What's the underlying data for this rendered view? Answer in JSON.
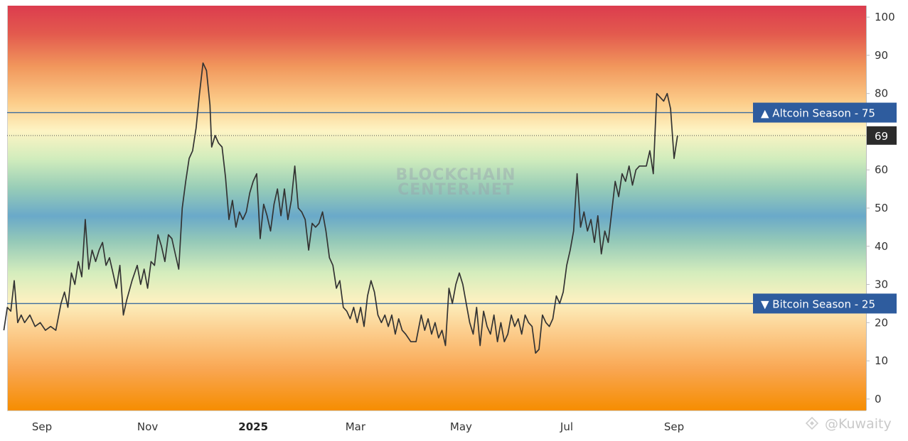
{
  "chart_data": {
    "type": "line",
    "title": "",
    "xlabel": "",
    "ylabel": "",
    "ylim": [
      -3,
      103
    ],
    "y_ticks": [
      "0",
      "10",
      "20",
      "30",
      "40",
      "50",
      "60",
      "70",
      "80",
      "90",
      "100"
    ],
    "x_ticks": [
      {
        "label": "Sep",
        "date": "2024-09-01"
      },
      {
        "label": "Nov",
        "date": "2024-11-01"
      },
      {
        "label": "2025",
        "date": "2025-01-01",
        "bold": true
      },
      {
        "label": "Mar",
        "date": "2025-03-01"
      },
      {
        "label": "May",
        "date": "2025-05-01"
      },
      {
        "label": "Jul",
        "date": "2025-07-01"
      },
      {
        "label": "Sep",
        "date": "2025-09-01"
      }
    ],
    "grid": false,
    "background": "vertical color gradient: red at 100, orange/yellow near 75, green, blue at 50, green, yellow near 25, orange at 0",
    "reference_lines": [
      {
        "name": "Altcoin Season",
        "value": 75,
        "direction": "up",
        "label": "▲ Altcoin Season - 75"
      },
      {
        "name": "Bitcoin Season",
        "value": 25,
        "direction": "down",
        "label": "▼ Bitcoin Season - 25"
      }
    ],
    "last_value_label": "69",
    "series": [
      {
        "points": [
          [
            "2024-08-10",
            18
          ],
          [
            "2024-08-12",
            24
          ],
          [
            "2024-08-14",
            23
          ],
          [
            "2024-08-16",
            31
          ],
          [
            "2024-08-18",
            20
          ],
          [
            "2024-08-20",
            22
          ],
          [
            "2024-08-22",
            20
          ],
          [
            "2024-08-25",
            22
          ],
          [
            "2024-08-28",
            19
          ],
          [
            "2024-08-31",
            20
          ],
          [
            "2024-09-03",
            18
          ],
          [
            "2024-09-06",
            19
          ],
          [
            "2024-09-09",
            18
          ],
          [
            "2024-09-12",
            25
          ],
          [
            "2024-09-14",
            28
          ],
          [
            "2024-09-16",
            24
          ],
          [
            "2024-09-18",
            33
          ],
          [
            "2024-09-20",
            30
          ],
          [
            "2024-09-22",
            36
          ],
          [
            "2024-09-24",
            32
          ],
          [
            "2024-09-26",
            47
          ],
          [
            "2024-09-28",
            34
          ],
          [
            "2024-09-30",
            39
          ],
          [
            "2024-10-02",
            36
          ],
          [
            "2024-10-04",
            39
          ],
          [
            "2024-10-06",
            41
          ],
          [
            "2024-10-08",
            35
          ],
          [
            "2024-10-10",
            37
          ],
          [
            "2024-10-12",
            33
          ],
          [
            "2024-10-14",
            29
          ],
          [
            "2024-10-16",
            35
          ],
          [
            "2024-10-18",
            22
          ],
          [
            "2024-10-20",
            26
          ],
          [
            "2024-10-23",
            31
          ],
          [
            "2024-10-26",
            35
          ],
          [
            "2024-10-28",
            30
          ],
          [
            "2024-10-30",
            34
          ],
          [
            "2024-11-01",
            29
          ],
          [
            "2024-11-03",
            36
          ],
          [
            "2024-11-05",
            35
          ],
          [
            "2024-11-07",
            43
          ],
          [
            "2024-11-09",
            40
          ],
          [
            "2024-11-11",
            36
          ],
          [
            "2024-11-13",
            43
          ],
          [
            "2024-11-15",
            42
          ],
          [
            "2024-11-17",
            38
          ],
          [
            "2024-11-19",
            34
          ],
          [
            "2024-11-21",
            50
          ],
          [
            "2024-11-23",
            57
          ],
          [
            "2024-11-25",
            63
          ],
          [
            "2024-11-27",
            65
          ],
          [
            "2024-11-29",
            71
          ],
          [
            "2024-12-01",
            80
          ],
          [
            "2024-12-03",
            88
          ],
          [
            "2024-12-05",
            86
          ],
          [
            "2024-12-07",
            77
          ],
          [
            "2024-12-08",
            66
          ],
          [
            "2024-12-10",
            69
          ],
          [
            "2024-12-12",
            67
          ],
          [
            "2024-12-14",
            66
          ],
          [
            "2024-12-16",
            58
          ],
          [
            "2024-12-18",
            47
          ],
          [
            "2024-12-20",
            52
          ],
          [
            "2024-12-22",
            45
          ],
          [
            "2024-12-24",
            49
          ],
          [
            "2024-12-26",
            47
          ],
          [
            "2024-12-28",
            49
          ],
          [
            "2024-12-30",
            54
          ],
          [
            "2025-01-01",
            57
          ],
          [
            "2025-01-03",
            59
          ],
          [
            "2025-01-05",
            42
          ],
          [
            "2025-01-07",
            51
          ],
          [
            "2025-01-09",
            48
          ],
          [
            "2025-01-11",
            44
          ],
          [
            "2025-01-13",
            51
          ],
          [
            "2025-01-15",
            55
          ],
          [
            "2025-01-17",
            48
          ],
          [
            "2025-01-19",
            55
          ],
          [
            "2025-01-21",
            47
          ],
          [
            "2025-01-23",
            52
          ],
          [
            "2025-01-25",
            61
          ],
          [
            "2025-01-27",
            50
          ],
          [
            "2025-01-29",
            49
          ],
          [
            "2025-01-31",
            47
          ],
          [
            "2025-02-02",
            39
          ],
          [
            "2025-02-04",
            46
          ],
          [
            "2025-02-06",
            45
          ],
          [
            "2025-02-08",
            46
          ],
          [
            "2025-02-10",
            49
          ],
          [
            "2025-02-12",
            44
          ],
          [
            "2025-02-14",
            37
          ],
          [
            "2025-02-16",
            35
          ],
          [
            "2025-02-18",
            29
          ],
          [
            "2025-02-20",
            31
          ],
          [
            "2025-02-22",
            24
          ],
          [
            "2025-02-24",
            23
          ],
          [
            "2025-02-26",
            21
          ],
          [
            "2025-02-28",
            24
          ],
          [
            "2025-03-02",
            20
          ],
          [
            "2025-03-04",
            24
          ],
          [
            "2025-03-06",
            19
          ],
          [
            "2025-03-08",
            27
          ],
          [
            "2025-03-10",
            31
          ],
          [
            "2025-03-12",
            28
          ],
          [
            "2025-03-14",
            22
          ],
          [
            "2025-03-16",
            20
          ],
          [
            "2025-03-18",
            22
          ],
          [
            "2025-03-20",
            19
          ],
          [
            "2025-03-22",
            22
          ],
          [
            "2025-03-24",
            17
          ],
          [
            "2025-03-26",
            21
          ],
          [
            "2025-03-28",
            18
          ],
          [
            "2025-03-30",
            17
          ],
          [
            "2025-04-02",
            15
          ],
          [
            "2025-04-05",
            15
          ],
          [
            "2025-04-08",
            22
          ],
          [
            "2025-04-10",
            18
          ],
          [
            "2025-04-12",
            21
          ],
          [
            "2025-04-14",
            17
          ],
          [
            "2025-04-16",
            20
          ],
          [
            "2025-04-18",
            16
          ],
          [
            "2025-04-20",
            18
          ],
          [
            "2025-04-22",
            14
          ],
          [
            "2025-04-24",
            29
          ],
          [
            "2025-04-26",
            25
          ],
          [
            "2025-04-28",
            30
          ],
          [
            "2025-04-30",
            33
          ],
          [
            "2025-05-02",
            30
          ],
          [
            "2025-05-04",
            25
          ],
          [
            "2025-05-06",
            20
          ],
          [
            "2025-05-08",
            17
          ],
          [
            "2025-05-10",
            24
          ],
          [
            "2025-05-12",
            14
          ],
          [
            "2025-05-14",
            23
          ],
          [
            "2025-05-16",
            19
          ],
          [
            "2025-05-18",
            17
          ],
          [
            "2025-05-20",
            22
          ],
          [
            "2025-05-22",
            15
          ],
          [
            "2025-05-24",
            20
          ],
          [
            "2025-05-26",
            15
          ],
          [
            "2025-05-28",
            17
          ],
          [
            "2025-05-30",
            22
          ],
          [
            "2025-06-01",
            19
          ],
          [
            "2025-06-03",
            21
          ],
          [
            "2025-06-05",
            17
          ],
          [
            "2025-06-07",
            22
          ],
          [
            "2025-06-09",
            20
          ],
          [
            "2025-06-11",
            19
          ],
          [
            "2025-06-13",
            12
          ],
          [
            "2025-06-15",
            13
          ],
          [
            "2025-06-17",
            22
          ],
          [
            "2025-06-19",
            20
          ],
          [
            "2025-06-21",
            19
          ],
          [
            "2025-06-23",
            21
          ],
          [
            "2025-06-25",
            27
          ],
          [
            "2025-06-27",
            25
          ],
          [
            "2025-06-29",
            28
          ],
          [
            "2025-07-01",
            35
          ],
          [
            "2025-07-03",
            39
          ],
          [
            "2025-07-05",
            44
          ],
          [
            "2025-07-07",
            59
          ],
          [
            "2025-07-09",
            45
          ],
          [
            "2025-07-11",
            49
          ],
          [
            "2025-07-13",
            44
          ],
          [
            "2025-07-15",
            47
          ],
          [
            "2025-07-17",
            41
          ],
          [
            "2025-07-19",
            48
          ],
          [
            "2025-07-21",
            38
          ],
          [
            "2025-07-23",
            44
          ],
          [
            "2025-07-25",
            41
          ],
          [
            "2025-07-27",
            49
          ],
          [
            "2025-07-29",
            57
          ],
          [
            "2025-07-31",
            53
          ],
          [
            "2025-08-02",
            59
          ],
          [
            "2025-08-04",
            57
          ],
          [
            "2025-08-06",
            61
          ],
          [
            "2025-08-08",
            56
          ],
          [
            "2025-08-10",
            60
          ],
          [
            "2025-08-12",
            61
          ],
          [
            "2025-08-14",
            61
          ],
          [
            "2025-08-16",
            61
          ],
          [
            "2025-08-18",
            65
          ],
          [
            "2025-08-20",
            59
          ],
          [
            "2025-08-22",
            80
          ],
          [
            "2025-08-24",
            79
          ],
          [
            "2025-08-26",
            78
          ],
          [
            "2025-08-28",
            80
          ],
          [
            "2025-08-30",
            76
          ],
          [
            "2025-09-01",
            63
          ],
          [
            "2025-09-03",
            69
          ]
        ]
      }
    ]
  },
  "watermark": {
    "line1": "BLOCKCHAIN",
    "line2": "CENTER.NET"
  },
  "credit": "@Kuwaity",
  "colors": {
    "line": "#333333",
    "badge": "#2e5c9e",
    "last_badge": "#2b2b2b",
    "ref_line": "#3d6d9e"
  }
}
